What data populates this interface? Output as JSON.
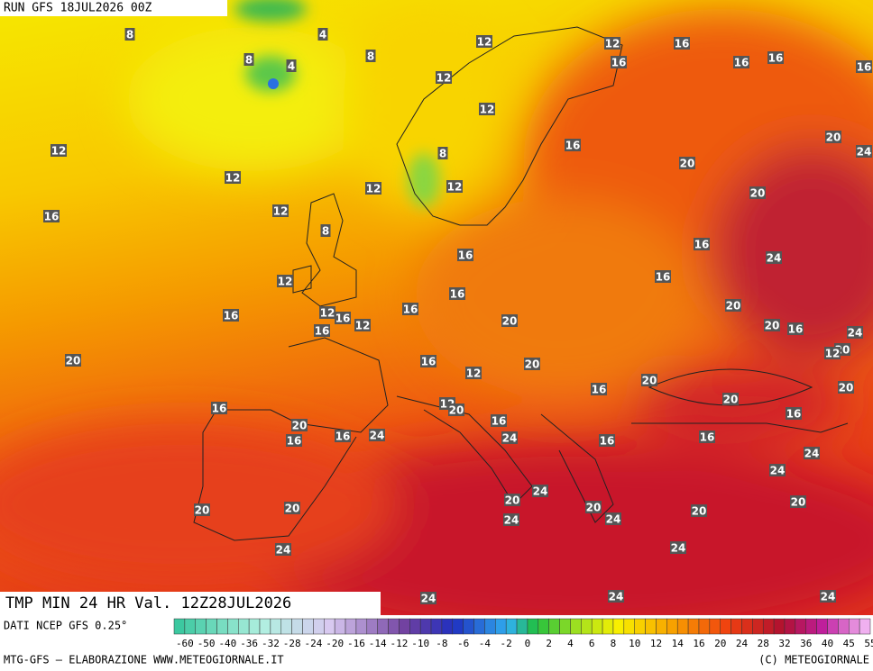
{
  "header": {
    "run": "RUN GFS 18JUL2026 00Z"
  },
  "footer": {
    "title": "TMP MIN 24 HR Val. 12Z28JUL2026",
    "source": "DATI NCEP GFS 0.25°",
    "credit": "MTG-GFS — ELABORAZIONE WWW.METEOGIORNALE.IT",
    "copyright": "(C) METEOGIORNALE"
  },
  "colorbar": {
    "labels": [
      -60,
      -50,
      -40,
      -36,
      -32,
      -28,
      -24,
      -20,
      -16,
      -14,
      -12,
      -10,
      -8,
      -6,
      -4,
      -2,
      0,
      2,
      4,
      6,
      8,
      10,
      12,
      14,
      16,
      20,
      24,
      28,
      32,
      36,
      40,
      45,
      55
    ]
  },
  "map": {
    "labels": [
      8,
      4,
      8,
      4,
      8,
      12,
      12,
      16,
      16,
      16,
      16,
      16,
      12,
      12,
      16,
      20,
      24,
      12,
      8,
      20,
      12,
      12,
      12,
      20,
      16,
      12,
      8,
      16,
      16,
      24,
      12,
      16,
      16,
      16,
      12,
      16,
      16,
      12,
      20,
      20,
      20,
      16,
      24,
      16,
      20,
      12,
      20,
      16,
      12,
      20,
      20,
      20,
      16,
      20,
      12,
      20,
      16,
      16,
      16,
      20,
      16,
      16,
      24,
      24,
      16,
      16,
      24,
      24,
      24,
      20,
      20,
      20,
      20,
      20,
      24,
      24,
      20,
      24,
      24,
      24,
      24,
      24
    ]
  }
}
